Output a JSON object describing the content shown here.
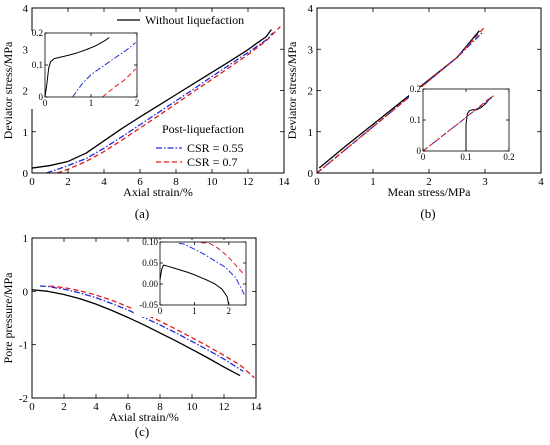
{
  "chart_data": [
    {
      "id": "a",
      "type": "line",
      "panel_label": "(a)",
      "xlabel": "Axial strain/%",
      "ylabel": "Deviator stress/MPa",
      "xlim": [
        0,
        14
      ],
      "ylim": [
        0,
        4
      ],
      "xticks": [
        0,
        2,
        4,
        6,
        8,
        10,
        12,
        14
      ],
      "yticks": [
        0,
        1,
        2,
        3,
        4
      ],
      "legend": {
        "placement": "top-right",
        "subheading": "Post-liquefaction"
      },
      "series": [
        {
          "name": "Without liquefaction",
          "color": "#000000",
          "dash": "solid",
          "x": [
            0,
            0.5,
            1,
            2,
            3,
            4,
            5,
            6,
            7,
            8,
            9,
            10,
            11,
            12,
            12.5,
            13,
            13.3
          ],
          "y": [
            0.12,
            0.15,
            0.18,
            0.28,
            0.48,
            0.78,
            1.08,
            1.36,
            1.63,
            1.9,
            2.17,
            2.44,
            2.71,
            2.99,
            3.15,
            3.3,
            3.48
          ]
        },
        {
          "name": "CSR = 0.55",
          "color": "#1f2bd6",
          "dash": "dashdot",
          "x": [
            0.8,
            1.5,
            2,
            3,
            4,
            5,
            6,
            7,
            8,
            9,
            10,
            11,
            12,
            13,
            13.4
          ],
          "y": [
            0,
            0.1,
            0.18,
            0.35,
            0.6,
            0.88,
            1.17,
            1.46,
            1.75,
            2.04,
            2.34,
            2.63,
            2.92,
            3.22,
            3.4
          ]
        },
        {
          "name": "CSR = 0.7",
          "color": "#e0191e",
          "dash": "dashed",
          "x": [
            1.4,
            2,
            3,
            4,
            5,
            6,
            7,
            8,
            9,
            10,
            11,
            12,
            13,
            13.8
          ],
          "y": [
            0,
            0.09,
            0.28,
            0.52,
            0.8,
            1.09,
            1.38,
            1.68,
            1.98,
            2.27,
            2.57,
            2.87,
            3.2,
            3.55
          ]
        }
      ],
      "inset": {
        "xlim": [
          0,
          2
        ],
        "ylim": [
          0,
          0.2
        ],
        "xticks": [
          0,
          1,
          2
        ],
        "yticks": [
          0,
          0.1,
          0.2
        ],
        "series": [
          {
            "color": "#000000",
            "dash": "solid",
            "x": [
              0,
              0.04,
              0.08,
              0.12,
              0.2,
              0.35,
              0.5,
              0.7,
              0.9,
              1.1,
              1.3,
              1.4
            ],
            "y": [
              0,
              0.04,
              0.09,
              0.11,
              0.12,
              0.125,
              0.13,
              0.138,
              0.148,
              0.16,
              0.176,
              0.186
            ]
          },
          {
            "color": "#1f2bd6",
            "dash": "dashdot",
            "x": [
              0.6,
              0.8,
              1.0,
              1.2,
              1.4,
              1.6,
              1.8,
              1.97
            ],
            "y": [
              0,
              0.04,
              0.07,
              0.09,
              0.11,
              0.13,
              0.15,
              0.17
            ]
          },
          {
            "color": "#e0191e",
            "dash": "dashed",
            "x": [
              1.25,
              1.4,
              1.55,
              1.7,
              1.85,
              1.97
            ],
            "y": [
              0,
              0.018,
              0.035,
              0.05,
              0.07,
              0.088
            ]
          }
        ]
      }
    },
    {
      "id": "b",
      "type": "line",
      "panel_label": "(b)",
      "xlabel": "Mean stress/MPa",
      "ylabel": "Deviator stress/MPa",
      "xlim": [
        0,
        4
      ],
      "ylim": [
        0,
        4
      ],
      "xticks": [
        0,
        1,
        2,
        3,
        4
      ],
      "yticks": [
        0,
        1,
        2,
        3,
        4
      ],
      "series": [
        {
          "color": "#000000",
          "dash": "solid",
          "x": [
            0.04,
            0.5,
            1,
            1.5,
            2,
            2.5,
            2.9
          ],
          "y": [
            0.12,
            0.64,
            1.18,
            1.72,
            2.26,
            2.8,
            3.45
          ]
        },
        {
          "color": "#1f2bd6",
          "dash": "dashdot",
          "x": [
            0,
            0.5,
            1,
            1.5,
            2,
            2.5,
            2.95
          ],
          "y": [
            0,
            0.56,
            1.12,
            1.68,
            2.24,
            2.8,
            3.4
          ]
        },
        {
          "color": "#e0191e",
          "dash": "dashed",
          "x": [
            0,
            0.5,
            1,
            1.5,
            2,
            2.5,
            3.0
          ],
          "y": [
            0,
            0.56,
            1.12,
            1.68,
            2.24,
            2.8,
            3.55
          ]
        }
      ],
      "inset": {
        "xlim": [
          0,
          0.2
        ],
        "ylim": [
          0,
          0.2
        ],
        "xticks": [
          0,
          0.1,
          0.2
        ],
        "yticks": [
          0,
          0.1,
          0.2
        ],
        "series": [
          {
            "color": "#000000",
            "dash": "solid",
            "x": [
              0.1,
              0.1,
              0.103,
              0.108,
              0.115,
              0.125,
              0.135,
              0.145,
              0.155,
              0.16
            ],
            "y": [
              0,
              0.085,
              0.12,
              0.13,
              0.133,
              0.133,
              0.14,
              0.152,
              0.168,
              0.175
            ]
          },
          {
            "color": "#1f2bd6",
            "dash": "dashdot",
            "x": [
              0,
              0.03,
              0.06,
              0.09,
              0.11,
              0.13,
              0.15,
              0.16
            ],
            "y": [
              0,
              0.032,
              0.065,
              0.097,
              0.12,
              0.14,
              0.162,
              0.172
            ]
          },
          {
            "color": "#e0191e",
            "dash": "dashed",
            "x": [
              0,
              0.03,
              0.06,
              0.09,
              0.11,
              0.13,
              0.15,
              0.165
            ],
            "y": [
              0,
              0.032,
              0.065,
              0.097,
              0.12,
              0.142,
              0.165,
              0.178
            ]
          }
        ]
      }
    },
    {
      "id": "c",
      "type": "line",
      "panel_label": "(c)",
      "xlabel": "Axial strain/%",
      "ylabel": "Pore pressure/MPa",
      "xlim": [
        0,
        14
      ],
      "ylim": [
        -2,
        1
      ],
      "xticks": [
        0,
        2,
        4,
        6,
        8,
        10,
        12,
        14
      ],
      "yticks": [
        -2,
        -1,
        0,
        1
      ],
      "series": [
        {
          "color": "#000000",
          "dash": "solid",
          "x": [
            0,
            1,
            2,
            3,
            4,
            5,
            6,
            7,
            8,
            9,
            10,
            11,
            12,
            13
          ],
          "y": [
            0.03,
            0.0,
            -0.06,
            -0.14,
            -0.24,
            -0.36,
            -0.49,
            -0.63,
            -0.78,
            -0.93,
            -1.09,
            -1.25,
            -1.42,
            -1.58
          ]
        },
        {
          "color": "#1f2bd6",
          "dash": "dashdot",
          "x": [
            0.5,
            1,
            2,
            3,
            4,
            5,
            6,
            7,
            8,
            9,
            10,
            11,
            12,
            13.2
          ],
          "y": [
            0.1,
            0.09,
            0.04,
            -0.03,
            -0.12,
            -0.23,
            -0.35,
            -0.49,
            -0.63,
            -0.78,
            -0.94,
            -1.1,
            -1.27,
            -1.5
          ]
        },
        {
          "color": "#e0191e",
          "dash": "dashed",
          "x": [
            1.1,
            2,
            3,
            4,
            5,
            6,
            7,
            8,
            9,
            10,
            11,
            12,
            13,
            13.9
          ],
          "y": [
            0.1,
            0.07,
            0.01,
            -0.07,
            -0.17,
            -0.29,
            -0.42,
            -0.56,
            -0.71,
            -0.87,
            -1.03,
            -1.2,
            -1.38,
            -1.62
          ]
        }
      ],
      "inset": {
        "xlim": [
          0,
          2.5
        ],
        "ylim": [
          -0.05,
          0.1
        ],
        "xticks": [
          0,
          1,
          2
        ],
        "yticks": [
          -0.05,
          0.0,
          0.05,
          0.1
        ],
        "ytick_labels": [
          "-0.05",
          "0.00",
          "0.05",
          "0.10"
        ],
        "series": [
          {
            "color": "#000000",
            "dash": "solid",
            "x": [
              0,
              0.05,
              0.1,
              0.2,
              0.4,
              0.6,
              0.8,
              1.0,
              1.2,
              1.4,
              1.6,
              1.8,
              1.95,
              2.0
            ],
            "y": [
              0.01,
              0.035,
              0.045,
              0.043,
              0.038,
              0.033,
              0.028,
              0.022,
              0.015,
              0.008,
              0.0,
              -0.012,
              -0.03,
              -0.05
            ]
          },
          {
            "color": "#1f2bd6",
            "dash": "dashdot",
            "x": [
              0.55,
              0.7,
              1.0,
              1.3,
              1.6,
              1.9,
              2.2,
              2.45
            ],
            "y": [
              0.097,
              0.095,
              0.083,
              0.07,
              0.055,
              0.04,
              0.015,
              -0.025
            ]
          },
          {
            "color": "#e0191e",
            "dash": "dashed",
            "x": [
              1.2,
              1.4,
              1.6,
              1.8,
              2.0,
              2.2,
              2.45
            ],
            "y": [
              0.098,
              0.098,
              0.09,
              0.078,
              0.063,
              0.045,
              0.022
            ]
          }
        ]
      }
    }
  ]
}
